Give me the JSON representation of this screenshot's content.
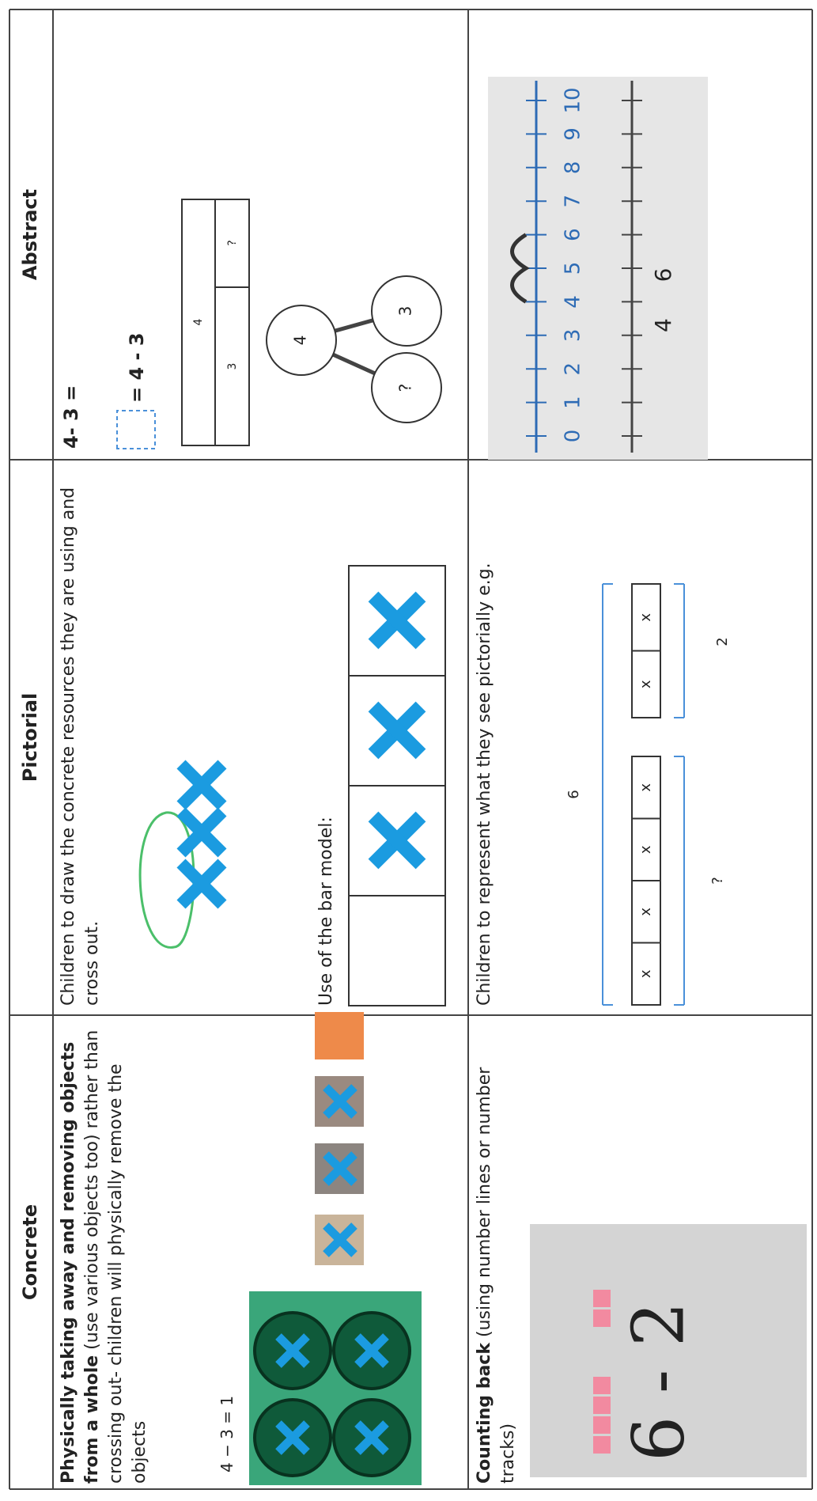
{
  "table": {
    "headers": [
      "Concrete",
      "Pictorial",
      "Abstract"
    ],
    "rows": [
      {
        "concrete": {
          "bold": "Physically taking away and removing objects from a whole",
          "text": "(use various objects too) rather than crossing out- children will physically remove the objects",
          "equation": "4 − 3 = 1"
        },
        "pictorial": {
          "text": "Children to draw the concrete resources they are using and cross out.",
          "bar_caption": "Use of the bar model:"
        },
        "abstract": {
          "equation1": "4- 3 =",
          "equation2": "= 4 - 3",
          "bar_whole": "4",
          "bar_parts": [
            "3",
            "?"
          ],
          "part_whole": {
            "whole": "4",
            "parts": [
              "?",
              "3"
            ]
          }
        }
      },
      {
        "concrete": {
          "bold": "Counting back",
          "text": "(using number lines or number tracks)",
          "photo_text": "6 - 2"
        },
        "pictorial": {
          "text": "Children to represent what they see pictorially e.g.",
          "cells": [
            "x",
            "x",
            "x",
            "x",
            "x",
            "x"
          ],
          "total": "6",
          "unknown": "?",
          "part": "2"
        },
        "abstract": {
          "number_line": [
            "0",
            "1",
            "2",
            "3",
            "4",
            "5",
            "6",
            "7",
            "8",
            "9",
            "10"
          ],
          "jumps": [
            "4",
            "6"
          ]
        }
      }
    ]
  }
}
